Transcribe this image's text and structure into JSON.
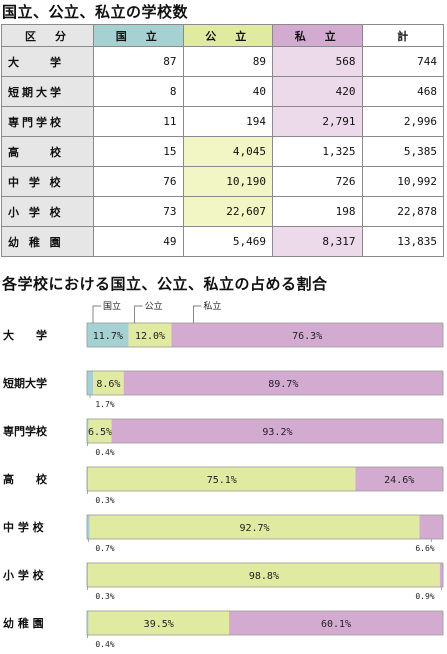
{
  "titles": {
    "table": "国立、公立、私立の学校数",
    "chart": "各学校における国立、公立、私立の占める割合"
  },
  "table": {
    "headers": [
      "区　分",
      "国　立",
      "公　立",
      "私　立",
      "計"
    ],
    "rows": [
      {
        "label": "大　　学",
        "values": [
          "87",
          "89",
          "568",
          "744"
        ]
      },
      {
        "label": "短期大学",
        "values": [
          "8",
          "40",
          "420",
          "468"
        ]
      },
      {
        "label": "専門学校",
        "values": [
          "11",
          "194",
          "2,791",
          "2,996"
        ]
      },
      {
        "label": "高　　校",
        "values": [
          "15",
          "4,045",
          "1,325",
          "5,385"
        ]
      },
      {
        "label": "中 学 校",
        "values": [
          "76",
          "10,190",
          "726",
          "10,992"
        ]
      },
      {
        "label": "小 学 校",
        "values": [
          "73",
          "22,607",
          "198",
          "22,878"
        ]
      },
      {
        "label": "幼 稚 園",
        "values": [
          "49",
          "5,469",
          "8,317",
          "13,835"
        ]
      }
    ]
  },
  "colors": {
    "national": "#a6d1d2",
    "public": "#e0eaa1",
    "private": "#d3abd1",
    "header_gray": "#e6e6e6",
    "highlight_public": "#f2f5c4",
    "highlight_private": "#ecd9ea"
  },
  "chart_data": {
    "type": "bar",
    "orientation": "horizontal",
    "stacked": true,
    "unit": "%",
    "categories": [
      "大　　学",
      "短期大学",
      "専門学校",
      "高　　校",
      "中 学 校",
      "小 学 校",
      "幼 稚 園"
    ],
    "series": [
      {
        "name": "国立",
        "values": [
          11.7,
          1.7,
          0.4,
          0.3,
          0.7,
          0.3,
          0.4
        ]
      },
      {
        "name": "公立",
        "values": [
          12.0,
          8.6,
          6.5,
          75.1,
          92.7,
          98.8,
          39.5
        ]
      },
      {
        "name": "私立",
        "values": [
          76.3,
          89.7,
          93.2,
          24.6,
          6.6,
          0.9,
          60.1
        ]
      }
    ],
    "labels": {
      "national": [
        "11.7%",
        "1.7%",
        "0.4%",
        "0.3%",
        "0.7%",
        "0.3%",
        "0.4%"
      ],
      "public": [
        "12.0%",
        "8.6%",
        "6.5%",
        "75.1%",
        "92.7%",
        "98.8%",
        "39.5%"
      ],
      "private": [
        "76.3%",
        "89.7%",
        "93.2%",
        "24.6%",
        "6.6%",
        "0.9%",
        "60.1%"
      ]
    },
    "legend": [
      "国立",
      "公立",
      "私立"
    ],
    "xlim": [
      0,
      100
    ]
  }
}
